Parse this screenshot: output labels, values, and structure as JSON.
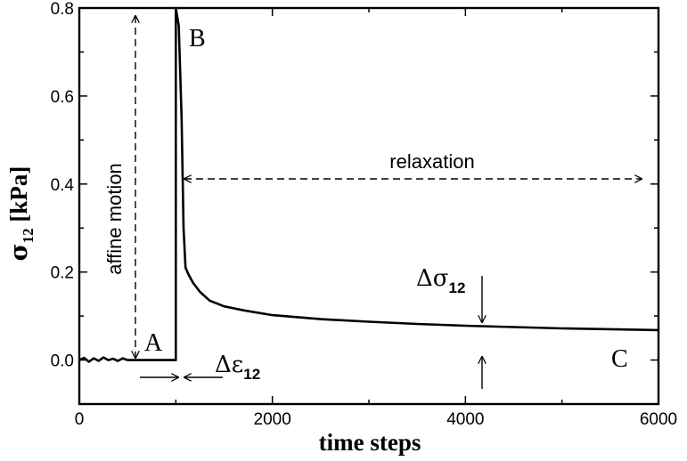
{
  "chart_data": {
    "type": "line",
    "title": "",
    "xlabel": "time steps",
    "ylabel": {
      "symbol": "σ",
      "sub": "12",
      "unit": " [kPa]"
    },
    "xlim": [
      0,
      6000
    ],
    "ylim": [
      -0.1,
      0.8
    ],
    "xticks": [
      0,
      2000,
      4000,
      6000
    ],
    "yticks": [
      0.0,
      0.2,
      0.4,
      0.6,
      0.8
    ],
    "xtick_labels": [
      "0",
      "2000",
      "4000",
      "6000"
    ],
    "ytick_labels": [
      "0.0",
      "0.2",
      "0.4",
      "0.6",
      "0.8"
    ],
    "grid": false,
    "series": [
      {
        "x": [
          0,
          50,
          100,
          150,
          200,
          250,
          300,
          350,
          400,
          450,
          500,
          600,
          700,
          800,
          900,
          1000,
          1000,
          1030,
          1060,
          1080,
          1100,
          1130,
          1180,
          1250,
          1350,
          1500,
          1700,
          2000,
          2500,
          3000,
          3500,
          4000,
          4500,
          5000,
          5500,
          6000
        ],
        "y": [
          0.0,
          0.005,
          -0.004,
          0.004,
          -0.002,
          0.006,
          0.0,
          0.003,
          -0.002,
          0.004,
          0.0,
          0.0,
          0.0,
          0.0,
          0.0,
          0.0,
          0.8,
          0.76,
          0.55,
          0.3,
          0.21,
          0.195,
          0.175,
          0.155,
          0.135,
          0.122,
          0.113,
          0.102,
          0.093,
          0.087,
          0.082,
          0.078,
          0.075,
          0.072,
          0.07,
          0.068
        ]
      }
    ],
    "annotations": {
      "affine": "affine motion",
      "relaxation": "relaxation",
      "point_a": "A",
      "point_b": "B",
      "point_c": "C",
      "delta_eps": {
        "symbol": "Δε",
        "sub": "12"
      },
      "delta_sigma": {
        "symbol": "Δσ",
        "sub": "12"
      }
    }
  }
}
